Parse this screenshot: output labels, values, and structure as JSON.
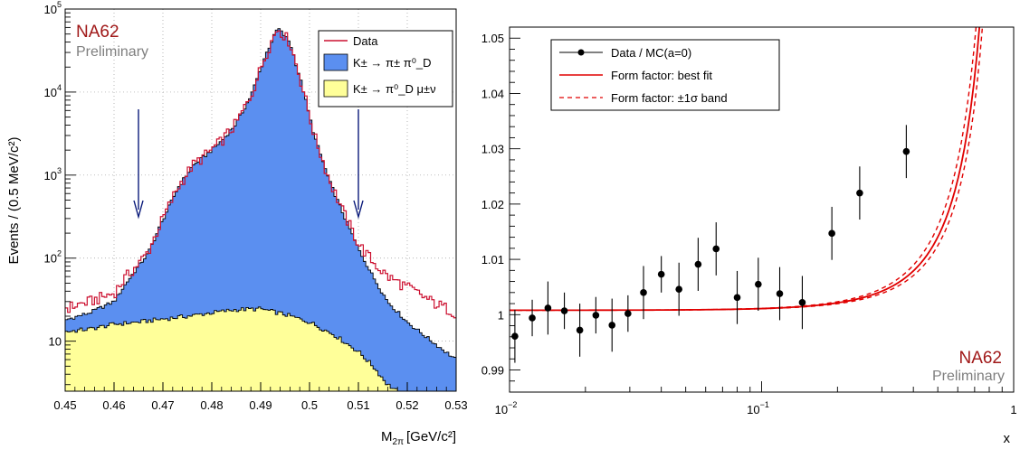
{
  "chart_data": [
    {
      "type": "histogram",
      "xlabel": "M_2π [GeV/c²]",
      "xlabel_main": "M",
      "xlabel_sub": "2π",
      "xlabel_unit": "[GeV/c²]",
      "ylabel": "Events / (0.5 MeV/c²)",
      "xlim": [
        0.45,
        0.53
      ],
      "ylim": [
        2.5,
        100000
      ],
      "log_y": true,
      "grid": true,
      "x_ticks": [
        "0.45",
        "0.46",
        "0.47",
        "0.48",
        "0.49",
        "0.5",
        "0.51",
        "0.52",
        "0.53"
      ],
      "y_ticks": [
        {
          "value": 10,
          "label": "10",
          "sup": ""
        },
        {
          "value": 100,
          "label": "10",
          "sup": "2"
        },
        {
          "value": 1000,
          "label": "10",
          "sup": "3"
        },
        {
          "value": 10000,
          "label": "10",
          "sup": "4"
        },
        {
          "value": 100000,
          "label": "10",
          "sup": "5"
        }
      ],
      "annotation_main": "NA62",
      "annotation_sub": "Preliminary",
      "arrows_x": [
        0.465,
        0.51
      ],
      "legend": {
        "placement": "top-right",
        "entries": [
          {
            "label": "Data",
            "color": "#cc1030",
            "kind": "line"
          },
          {
            "label": "K± → π± π⁰_D",
            "color": "#5b8ff0",
            "kind": "fill"
          },
          {
            "label": "K± → π⁰_D μ±ν",
            "color": "#ffff99",
            "kind": "fill"
          }
        ]
      },
      "series": [
        {
          "name": "Data",
          "color": "#cc1030",
          "points": [
            [
              0.45,
              25
            ],
            [
              0.455,
              30
            ],
            [
              0.46,
              38
            ],
            [
              0.4625,
              60
            ],
            [
              0.465,
              85
            ],
            [
              0.467,
              120
            ],
            [
              0.47,
              300
            ],
            [
              0.473,
              700
            ],
            [
              0.476,
              1300
            ],
            [
              0.479,
              1800
            ],
            [
              0.482,
              2600
            ],
            [
              0.485,
              4200
            ],
            [
              0.488,
              9000
            ],
            [
              0.491,
              28000
            ],
            [
              0.4935,
              60000
            ],
            [
              0.496,
              40000
            ],
            [
              0.4985,
              12000
            ],
            [
              0.501,
              3000
            ],
            [
              0.504,
              900
            ],
            [
              0.507,
              350
            ],
            [
              0.51,
              150
            ],
            [
              0.513,
              90
            ],
            [
              0.516,
              60
            ],
            [
              0.52,
              45
            ],
            [
              0.525,
              30
            ],
            [
              0.53,
              22
            ]
          ]
        },
        {
          "name": "K± → π± π⁰_D",
          "color": "#5b8ff0",
          "points": [
            [
              0.45,
              18
            ],
            [
              0.455,
              22
            ],
            [
              0.46,
              30
            ],
            [
              0.4625,
              50
            ],
            [
              0.465,
              80
            ],
            [
              0.467,
              115
            ],
            [
              0.47,
              290
            ],
            [
              0.473,
              690
            ],
            [
              0.476,
              1280
            ],
            [
              0.479,
              1780
            ],
            [
              0.482,
              2580
            ],
            [
              0.485,
              4180
            ],
            [
              0.488,
              8950
            ],
            [
              0.491,
              27800
            ],
            [
              0.4935,
              59500
            ],
            [
              0.496,
              39800
            ],
            [
              0.4985,
              11900
            ],
            [
              0.501,
              2950
            ],
            [
              0.504,
              870
            ],
            [
              0.507,
              330
            ],
            [
              0.51,
              130
            ],
            [
              0.513,
              60
            ],
            [
              0.516,
              30
            ],
            [
              0.52,
              17
            ],
            [
              0.525,
              10
            ],
            [
              0.53,
              6
            ]
          ]
        },
        {
          "name": "K± → π⁰_D μ±ν",
          "color": "#ffff99",
          "points": [
            [
              0.45,
              13
            ],
            [
              0.455,
              14
            ],
            [
              0.46,
              16
            ],
            [
              0.465,
              17
            ],
            [
              0.47,
              18.5
            ],
            [
              0.475,
              20
            ],
            [
              0.48,
              22
            ],
            [
              0.485,
              24
            ],
            [
              0.49,
              24.5
            ],
            [
              0.495,
              21
            ],
            [
              0.5,
              17
            ],
            [
              0.505,
              12
            ],
            [
              0.51,
              7.5
            ],
            [
              0.513,
              5
            ],
            [
              0.516,
              3
            ],
            [
              0.518,
              2.5
            ]
          ]
        }
      ]
    },
    {
      "type": "scatter",
      "xlabel": "x",
      "ylabel": "",
      "xlim": [
        0.01,
        1.0
      ],
      "ylim": [
        0.986,
        1.052
      ],
      "log_x": true,
      "grid": false,
      "x_ticks": [
        {
          "value": 0.01,
          "label": "10",
          "sup": "−2"
        },
        {
          "value": 0.1,
          "label": "10",
          "sup": "−1"
        },
        {
          "value": 1,
          "label": "1",
          "sup": ""
        }
      ],
      "y_ticks": [
        "0.99",
        "1",
        "1.01",
        "1.02",
        "1.03",
        "1.04",
        "1.05"
      ],
      "annotation_main": "NA62",
      "annotation_sub": "Preliminary",
      "legend": {
        "placement": "top-left",
        "entries": [
          {
            "label": "Data / MC(a=0)",
            "kind": "marker",
            "color": "#000000"
          },
          {
            "label": "Form factor: best fit",
            "kind": "line",
            "color": "#e00000"
          },
          {
            "label": "Form factor: ±1σ band",
            "kind": "dashed",
            "color": "#e00000"
          }
        ]
      },
      "series": [
        {
          "name": "Data / MC(a=0)",
          "color": "#000000",
          "points": [
            {
              "x": 0.0105,
              "y": 0.9961,
              "err": 0.0048
            },
            {
              "x": 0.0123,
              "y": 0.9994,
              "err": 0.0033
            },
            {
              "x": 0.0142,
              "y": 1.0012,
              "err": 0.0048
            },
            {
              "x": 0.0165,
              "y": 1.0007,
              "err": 0.0033
            },
            {
              "x": 0.019,
              "y": 0.9972,
              "err": 0.0048
            },
            {
              "x": 0.022,
              "y": 0.9999,
              "err": 0.0033
            },
            {
              "x": 0.0255,
              "y": 0.9981,
              "err": 0.0048
            },
            {
              "x": 0.0295,
              "y": 1.0002,
              "err": 0.0033
            },
            {
              "x": 0.034,
              "y": 1.004,
              "err": 0.0048
            },
            {
              "x": 0.04,
              "y": 1.0073,
              "err": 0.0033
            },
            {
              "x": 0.047,
              "y": 1.0046,
              "err": 0.0048
            },
            {
              "x": 0.056,
              "y": 1.0091,
              "err": 0.0048
            },
            {
              "x": 0.066,
              "y": 1.0119,
              "err": 0.0048
            },
            {
              "x": 0.08,
              "y": 1.0031,
              "err": 0.0048
            },
            {
              "x": 0.097,
              "y": 1.0055,
              "err": 0.0048
            },
            {
              "x": 0.118,
              "y": 1.0038,
              "err": 0.0048
            },
            {
              "x": 0.145,
              "y": 1.0022,
              "err": 0.0048
            },
            {
              "x": 0.19,
              "y": 1.0147,
              "err": 0.0048
            },
            {
              "x": 0.245,
              "y": 1.022,
              "err": 0.0048
            },
            {
              "x": 0.375,
              "y": 1.0295,
              "err": 0.0048
            }
          ]
        },
        {
          "name": "Form factor: best fit",
          "color": "#e00000",
          "a": 0.034
        },
        {
          "name": "Form factor: ±1σ band",
          "color": "#e00000",
          "a_low": 0.03,
          "a_high": 0.039
        }
      ]
    }
  ]
}
